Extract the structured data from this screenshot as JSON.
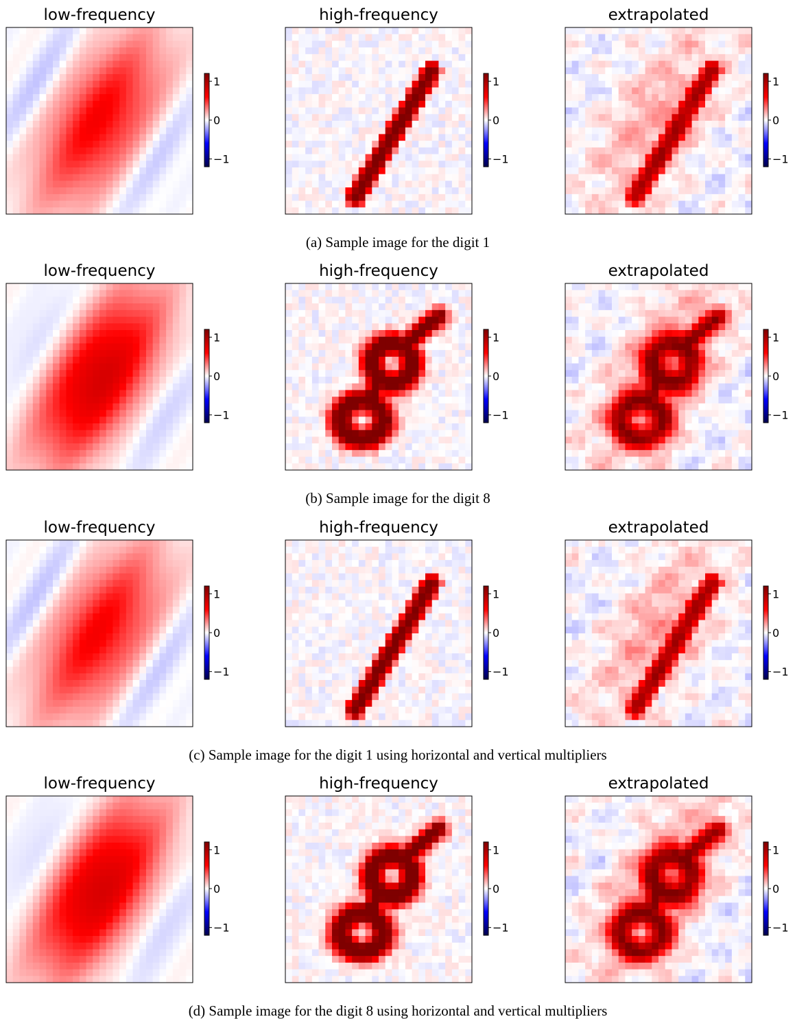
{
  "chart_data": [
    {
      "type": "heatmap",
      "subfigure": "a",
      "caption": "(a) Sample image for the digit 1",
      "digit": 1,
      "panels": [
        {
          "title": "low-frequency",
          "content": "low-frequency",
          "colorbar_ticks": [
            "1",
            "0",
            "−1"
          ],
          "colorbar_tick_values": [
            1,
            0,
            -1
          ],
          "colormap": "seismic"
        },
        {
          "title": "high-frequency",
          "content": "high-frequency",
          "colorbar_ticks": [
            "1",
            "0",
            "−1"
          ],
          "colorbar_tick_values": [
            1,
            0,
            -1
          ],
          "colormap": "seismic"
        },
        {
          "title": "extrapolated",
          "content": "extrapolated",
          "colorbar_ticks": [
            "1",
            "0",
            "−1"
          ],
          "colorbar_tick_values": [
            1,
            0,
            -1
          ],
          "colormap": "seismic"
        }
      ]
    },
    {
      "type": "heatmap",
      "subfigure": "b",
      "caption": "(b) Sample image for the digit 8",
      "digit": 8,
      "panels": [
        {
          "title": "low-frequency",
          "content": "low-frequency",
          "colorbar_ticks": [
            "1",
            "0",
            "−1"
          ],
          "colorbar_tick_values": [
            1,
            0,
            -1
          ],
          "colormap": "seismic"
        },
        {
          "title": "high-frequency",
          "content": "high-frequency",
          "colorbar_ticks": [
            "1",
            "0",
            "−1"
          ],
          "colorbar_tick_values": [
            1,
            0,
            -1
          ],
          "colormap": "seismic"
        },
        {
          "title": "extrapolated",
          "content": "extrapolated",
          "colorbar_ticks": [
            "1",
            "0",
            "−1"
          ],
          "colorbar_tick_values": [
            1,
            0,
            -1
          ],
          "colormap": "seismic"
        }
      ]
    },
    {
      "type": "heatmap",
      "subfigure": "c",
      "caption": "(c) Sample image for the digit 1 using horizontal and vertical multipliers",
      "digit": 1,
      "panels": [
        {
          "title": "low-frequency",
          "content": "low-frequency",
          "colorbar_ticks": [
            "1",
            "0",
            "−1"
          ],
          "colorbar_tick_values": [
            1,
            0,
            -1
          ],
          "colormap": "seismic"
        },
        {
          "title": "high-frequency",
          "content": "high-frequency",
          "colorbar_ticks": [
            "1",
            "0",
            "−1"
          ],
          "colorbar_tick_values": [
            1,
            0,
            -1
          ],
          "colormap": "seismic"
        },
        {
          "title": "extrapolated",
          "content": "extrapolated",
          "colorbar_ticks": [
            "1",
            "0",
            "−1"
          ],
          "colorbar_tick_values": [
            1,
            0,
            -1
          ],
          "colormap": "seismic"
        }
      ]
    },
    {
      "type": "heatmap",
      "subfigure": "d",
      "caption": "(d) Sample image for the digit 8 using horizontal and vertical multipliers",
      "digit": 8,
      "panels": [
        {
          "title": "low-frequency",
          "content": "low-frequency",
          "colorbar_ticks": [
            "1",
            "0",
            "−1"
          ],
          "colorbar_tick_values": [
            1,
            0,
            -1
          ],
          "colormap": "seismic"
        },
        {
          "title": "high-frequency",
          "content": "high-frequency",
          "colorbar_ticks": [
            "1",
            "0",
            "−1"
          ],
          "colorbar_tick_values": [
            1,
            0,
            -1
          ],
          "colormap": "seismic"
        },
        {
          "title": "extrapolated",
          "content": "extrapolated",
          "colorbar_ticks": [
            "1",
            "0",
            "−1"
          ],
          "colorbar_tick_values": [
            1,
            0,
            -1
          ],
          "colormap": "seismic"
        }
      ]
    }
  ],
  "colors": {
    "positive": "#b00000",
    "zero": "#ffffff",
    "negative": "#0000b0",
    "axes": "#000000"
  }
}
